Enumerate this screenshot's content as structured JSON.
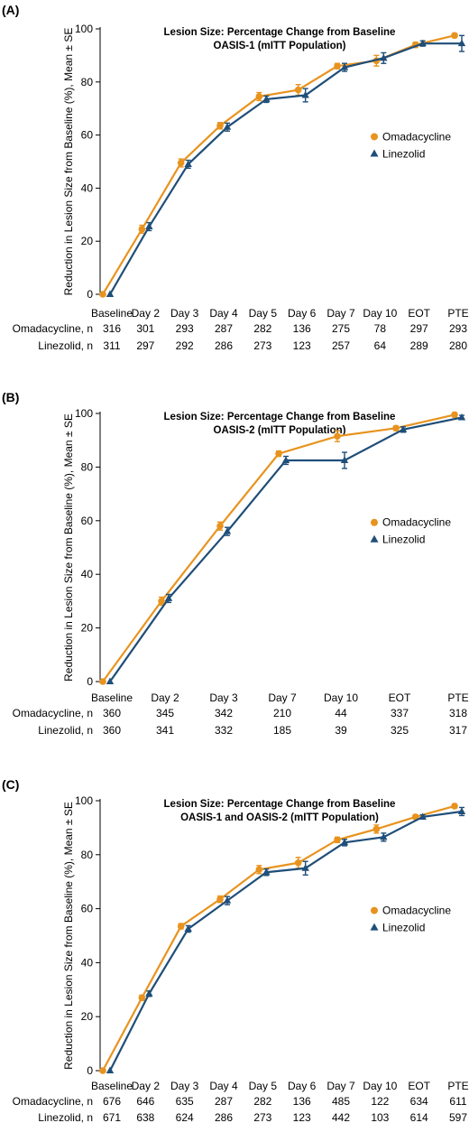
{
  "colors": {
    "omadacycline": "#E8931E",
    "linezolid": "#1F4E79",
    "axis": "#000000"
  },
  "chart_data": [
    {
      "type": "line",
      "panel_label": "(A)",
      "title": "Lesion Size: Percentage Change from Baseline",
      "subtitle": "OASIS-1 (mITT Population)",
      "ylabel": "Reduction in Lesion Size from Baseline (%), Mean ± SE",
      "xlabel": "",
      "ylim": [
        0,
        100
      ],
      "yticks": [
        0,
        20,
        40,
        60,
        80,
        100
      ],
      "categories": [
        "Baseline",
        "Day 2",
        "Day 3",
        "Day 4",
        "Day 5",
        "Day 6",
        "Day 7",
        "Day 10",
        "EOT",
        "PTE"
      ],
      "series": [
        {
          "name": "Omadacycline",
          "marker": "circle",
          "values": [
            0,
            24.5,
            49.5,
            63.5,
            74.5,
            77,
            86,
            88,
            94,
            97.5
          ],
          "se": [
            0,
            1.5,
            1.5,
            1.2,
            1.5,
            2,
            1,
            2,
            1,
            0.8
          ]
        },
        {
          "name": "Linezolid",
          "marker": "triangle",
          "values": [
            0,
            25.5,
            49,
            63,
            73.5,
            75,
            85.5,
            89,
            94.5,
            94.5
          ],
          "se": [
            0,
            1.5,
            1.5,
            1.5,
            1.2,
            2.5,
            1.5,
            2,
            1,
            3
          ]
        }
      ],
      "n_table": [
        {
          "label": "Omadacycline, n",
          "values": [
            "316",
            "301",
            "293",
            "287",
            "282",
            "136",
            "275",
            "78",
            "297",
            "293"
          ]
        },
        {
          "label": "Linezolid, n",
          "values": [
            "311",
            "297",
            "292",
            "286",
            "273",
            "123",
            "257",
            "64",
            "289",
            "280"
          ]
        }
      ],
      "legend_position": "right"
    },
    {
      "type": "line",
      "panel_label": "(B)",
      "title": "Lesion Size: Percentage Change from Baseline",
      "subtitle": "OASIS-2 (mITT Population)",
      "ylabel": "Reduction in Lesion Size from Baseline (%), Mean ± SE",
      "xlabel": "",
      "ylim": [
        0,
        100
      ],
      "yticks": [
        0,
        20,
        40,
        60,
        80,
        100
      ],
      "categories": [
        "Baseline",
        "Day 2",
        "Day 3",
        "Day 7",
        "Day 10",
        "EOT",
        "PTE"
      ],
      "series": [
        {
          "name": "Omadacycline",
          "marker": "circle",
          "values": [
            0,
            30,
            58,
            85,
            91.5,
            94.5,
            99.5
          ],
          "se": [
            0,
            1.5,
            1.5,
            1,
            2,
            0.8,
            0.8
          ]
        },
        {
          "name": "Linezolid",
          "marker": "triangle",
          "values": [
            0,
            31,
            56,
            82.5,
            82.5,
            94,
            98.5
          ],
          "se": [
            0,
            1.5,
            1.5,
            1.5,
            3,
            1,
            0.8
          ]
        }
      ],
      "n_table": [
        {
          "label": "Omadacycline, n",
          "values": [
            "360",
            "345",
            "342",
            "210",
            "44",
            "337",
            "318"
          ]
        },
        {
          "label": "Linezolid, n",
          "values": [
            "360",
            "341",
            "332",
            "185",
            "39",
            "325",
            "317"
          ]
        }
      ],
      "legend_position": "right"
    },
    {
      "type": "line",
      "panel_label": "(C)",
      "title": "Lesion Size: Percentage Change from Baseline",
      "subtitle": "OASIS-1 and OASIS-2 (mITT Population)",
      "ylabel": "Reduction in Lesion Size from Baseline (%), Mean ± SE",
      "xlabel": "",
      "ylim": [
        0,
        100
      ],
      "yticks": [
        0,
        20,
        40,
        60,
        80,
        100
      ],
      "categories": [
        "Baseline",
        "Day 2",
        "Day 3",
        "Day 4",
        "Day 5",
        "Day 6",
        "Day 7",
        "Day 10",
        "EOT",
        "PTE"
      ],
      "series": [
        {
          "name": "Omadacycline",
          "marker": "circle",
          "values": [
            0,
            27,
            53.5,
            63.5,
            74.5,
            77,
            85.5,
            89.5,
            94,
            98
          ],
          "se": [
            0,
            1,
            1,
            1.2,
            1.5,
            2,
            1,
            1.5,
            0.8,
            0.7
          ]
        },
        {
          "name": "Linezolid",
          "marker": "triangle",
          "values": [
            0,
            28.5,
            52.5,
            63,
            73.5,
            75,
            84.5,
            86.5,
            94,
            96
          ],
          "se": [
            0,
            1,
            1.2,
            1.5,
            1.2,
            2.5,
            1.2,
            1.5,
            0.8,
            1.5
          ]
        }
      ],
      "n_table": [
        {
          "label": "Omadacycline, n",
          "values": [
            "676",
            "646",
            "635",
            "287",
            "282",
            "136",
            "485",
            "122",
            "634",
            "611"
          ]
        },
        {
          "label": "Linezolid, n",
          "values": [
            "671",
            "638",
            "624",
            "286",
            "273",
            "123",
            "442",
            "103",
            "614",
            "597"
          ]
        }
      ],
      "legend_position": "right"
    }
  ]
}
